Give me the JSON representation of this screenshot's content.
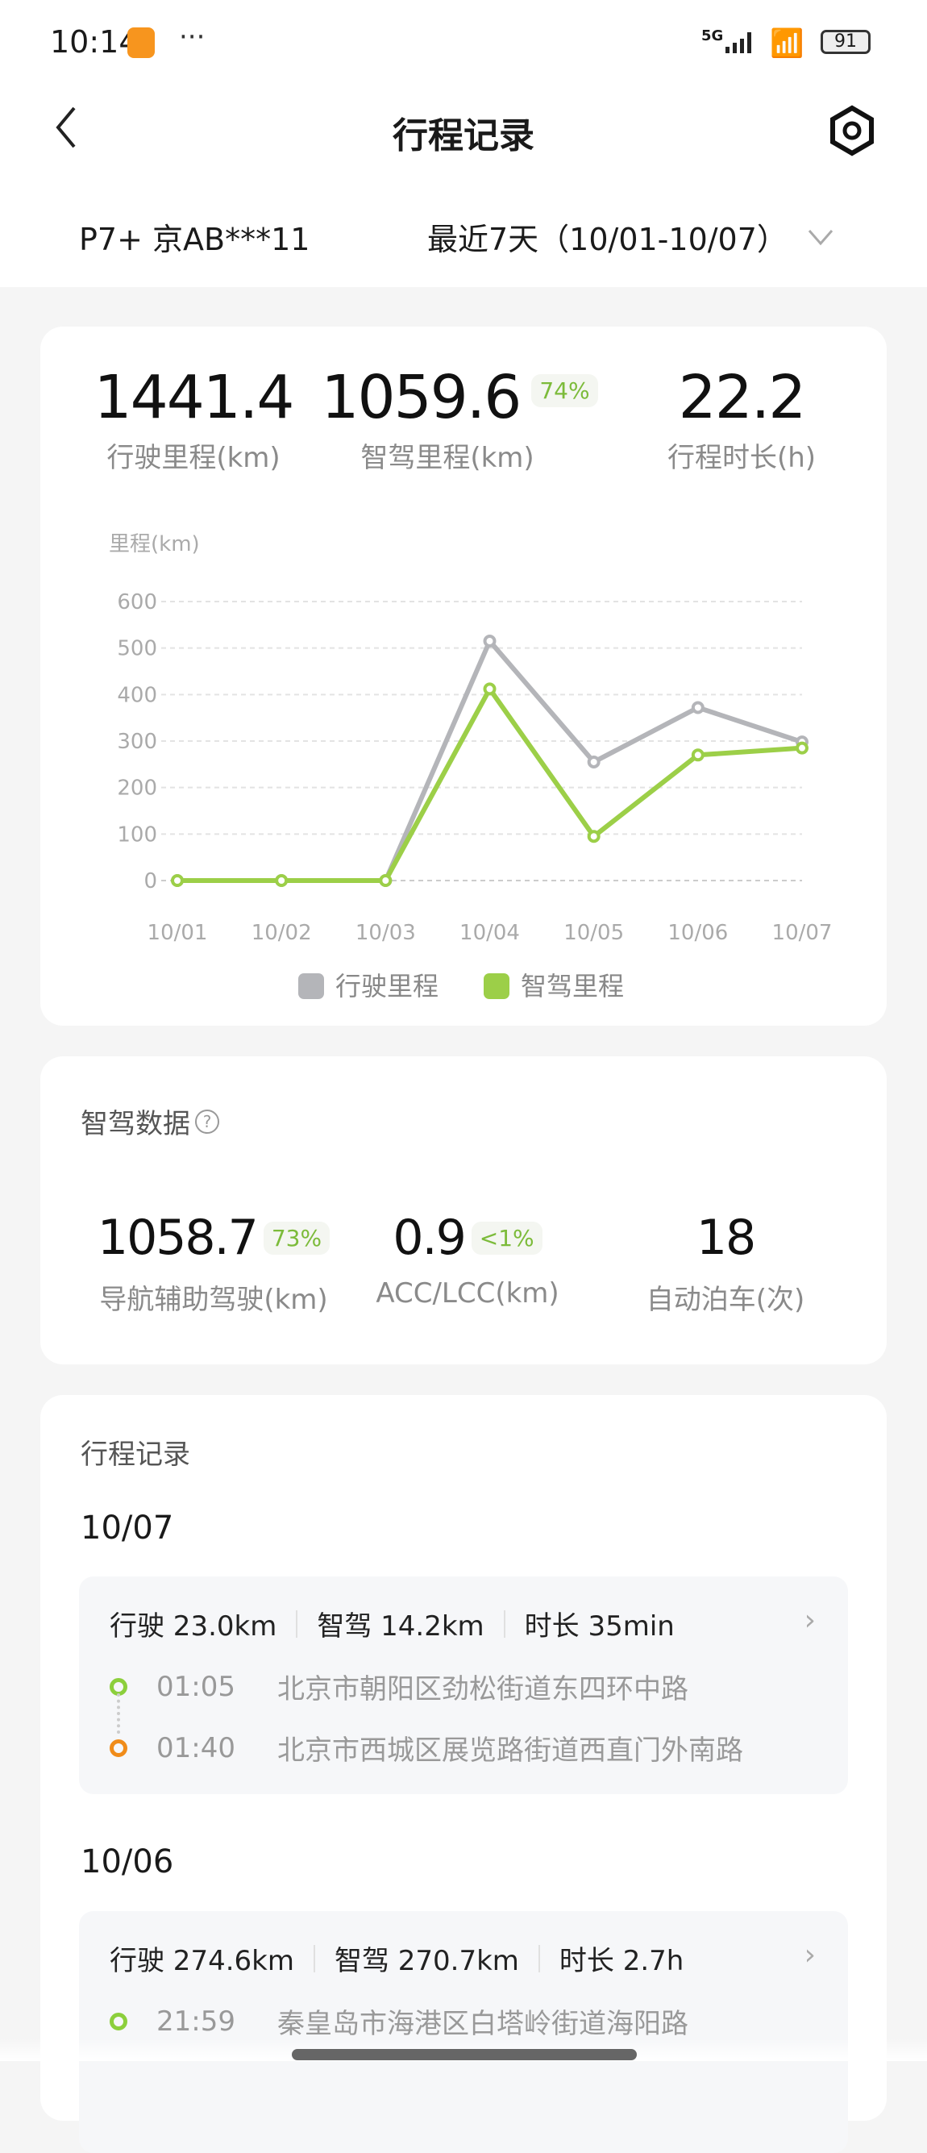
{
  "status_bar": {
    "time": "10:14",
    "more": "···",
    "network": "5G",
    "battery": "91"
  },
  "header": {
    "title": "行程记录",
    "back_icon": "chevron-left-icon",
    "settings_icon": "hexagon-gear-icon"
  },
  "filter": {
    "vehicle": "P7+ 京AB***11",
    "range": "最近7天（10/01-10/07）"
  },
  "summary": {
    "total_distance": {
      "value": "1441.4",
      "label": "行驶里程(km)"
    },
    "smart_distance": {
      "value": "1059.6",
      "badge": "74%",
      "label": "智驾里程(km)"
    },
    "duration": {
      "value": "22.2",
      "label": "行程时长(h)"
    }
  },
  "chart_data": {
    "type": "line",
    "ylabel": "里程(km)",
    "categories": [
      "10/01",
      "10/02",
      "10/03",
      "10/04",
      "10/05",
      "10/06",
      "10/07"
    ],
    "yticks": [
      "0",
      "100",
      "200",
      "300",
      "400",
      "500",
      "600"
    ],
    "ylim": [
      0,
      600
    ],
    "grid": true,
    "legend": "bottom",
    "series": [
      {
        "name": "行驶里程",
        "color": "#b4b5b9",
        "values": [
          0,
          0,
          0,
          515,
          255,
          372,
          298
        ]
      },
      {
        "name": "智驾里程",
        "color": "#9ccf48",
        "values": [
          0,
          0,
          0,
          412,
          95,
          270,
          285
        ]
      }
    ]
  },
  "smart_data": {
    "title": "智驾数据",
    "help_icon": "question-circle-icon",
    "items": [
      {
        "value": "1058.7",
        "badge": "73%",
        "label": "导航辅助驾驶(km)"
      },
      {
        "value": "0.9",
        "badge": "<1%",
        "label": "ACC/LCC(km)"
      },
      {
        "value": "18",
        "label": "自动泊车(次)"
      }
    ]
  },
  "trips": {
    "title": "行程记录",
    "days": [
      {
        "date": "10/07",
        "summary": [
          "行驶 23.0km",
          "智驾 14.2km",
          "时长 35min"
        ],
        "start": {
          "time": "01:05",
          "place": "北京市朝阳区劲松街道东四环中路"
        },
        "end": {
          "time": "01:40",
          "place": "北京市西城区展览路街道西直门外南路"
        }
      },
      {
        "date": "10/06",
        "summary": [
          "行驶 274.6km",
          "智驾 270.7km",
          "时长 2.7h"
        ],
        "start": {
          "time": "21:59",
          "place": "秦皇岛市海港区白塔岭街道海阳路"
        }
      }
    ]
  },
  "colors": {
    "accent": "#9ccf48",
    "gray_series": "#b4b5b9",
    "end_point": "#f08c1a"
  }
}
